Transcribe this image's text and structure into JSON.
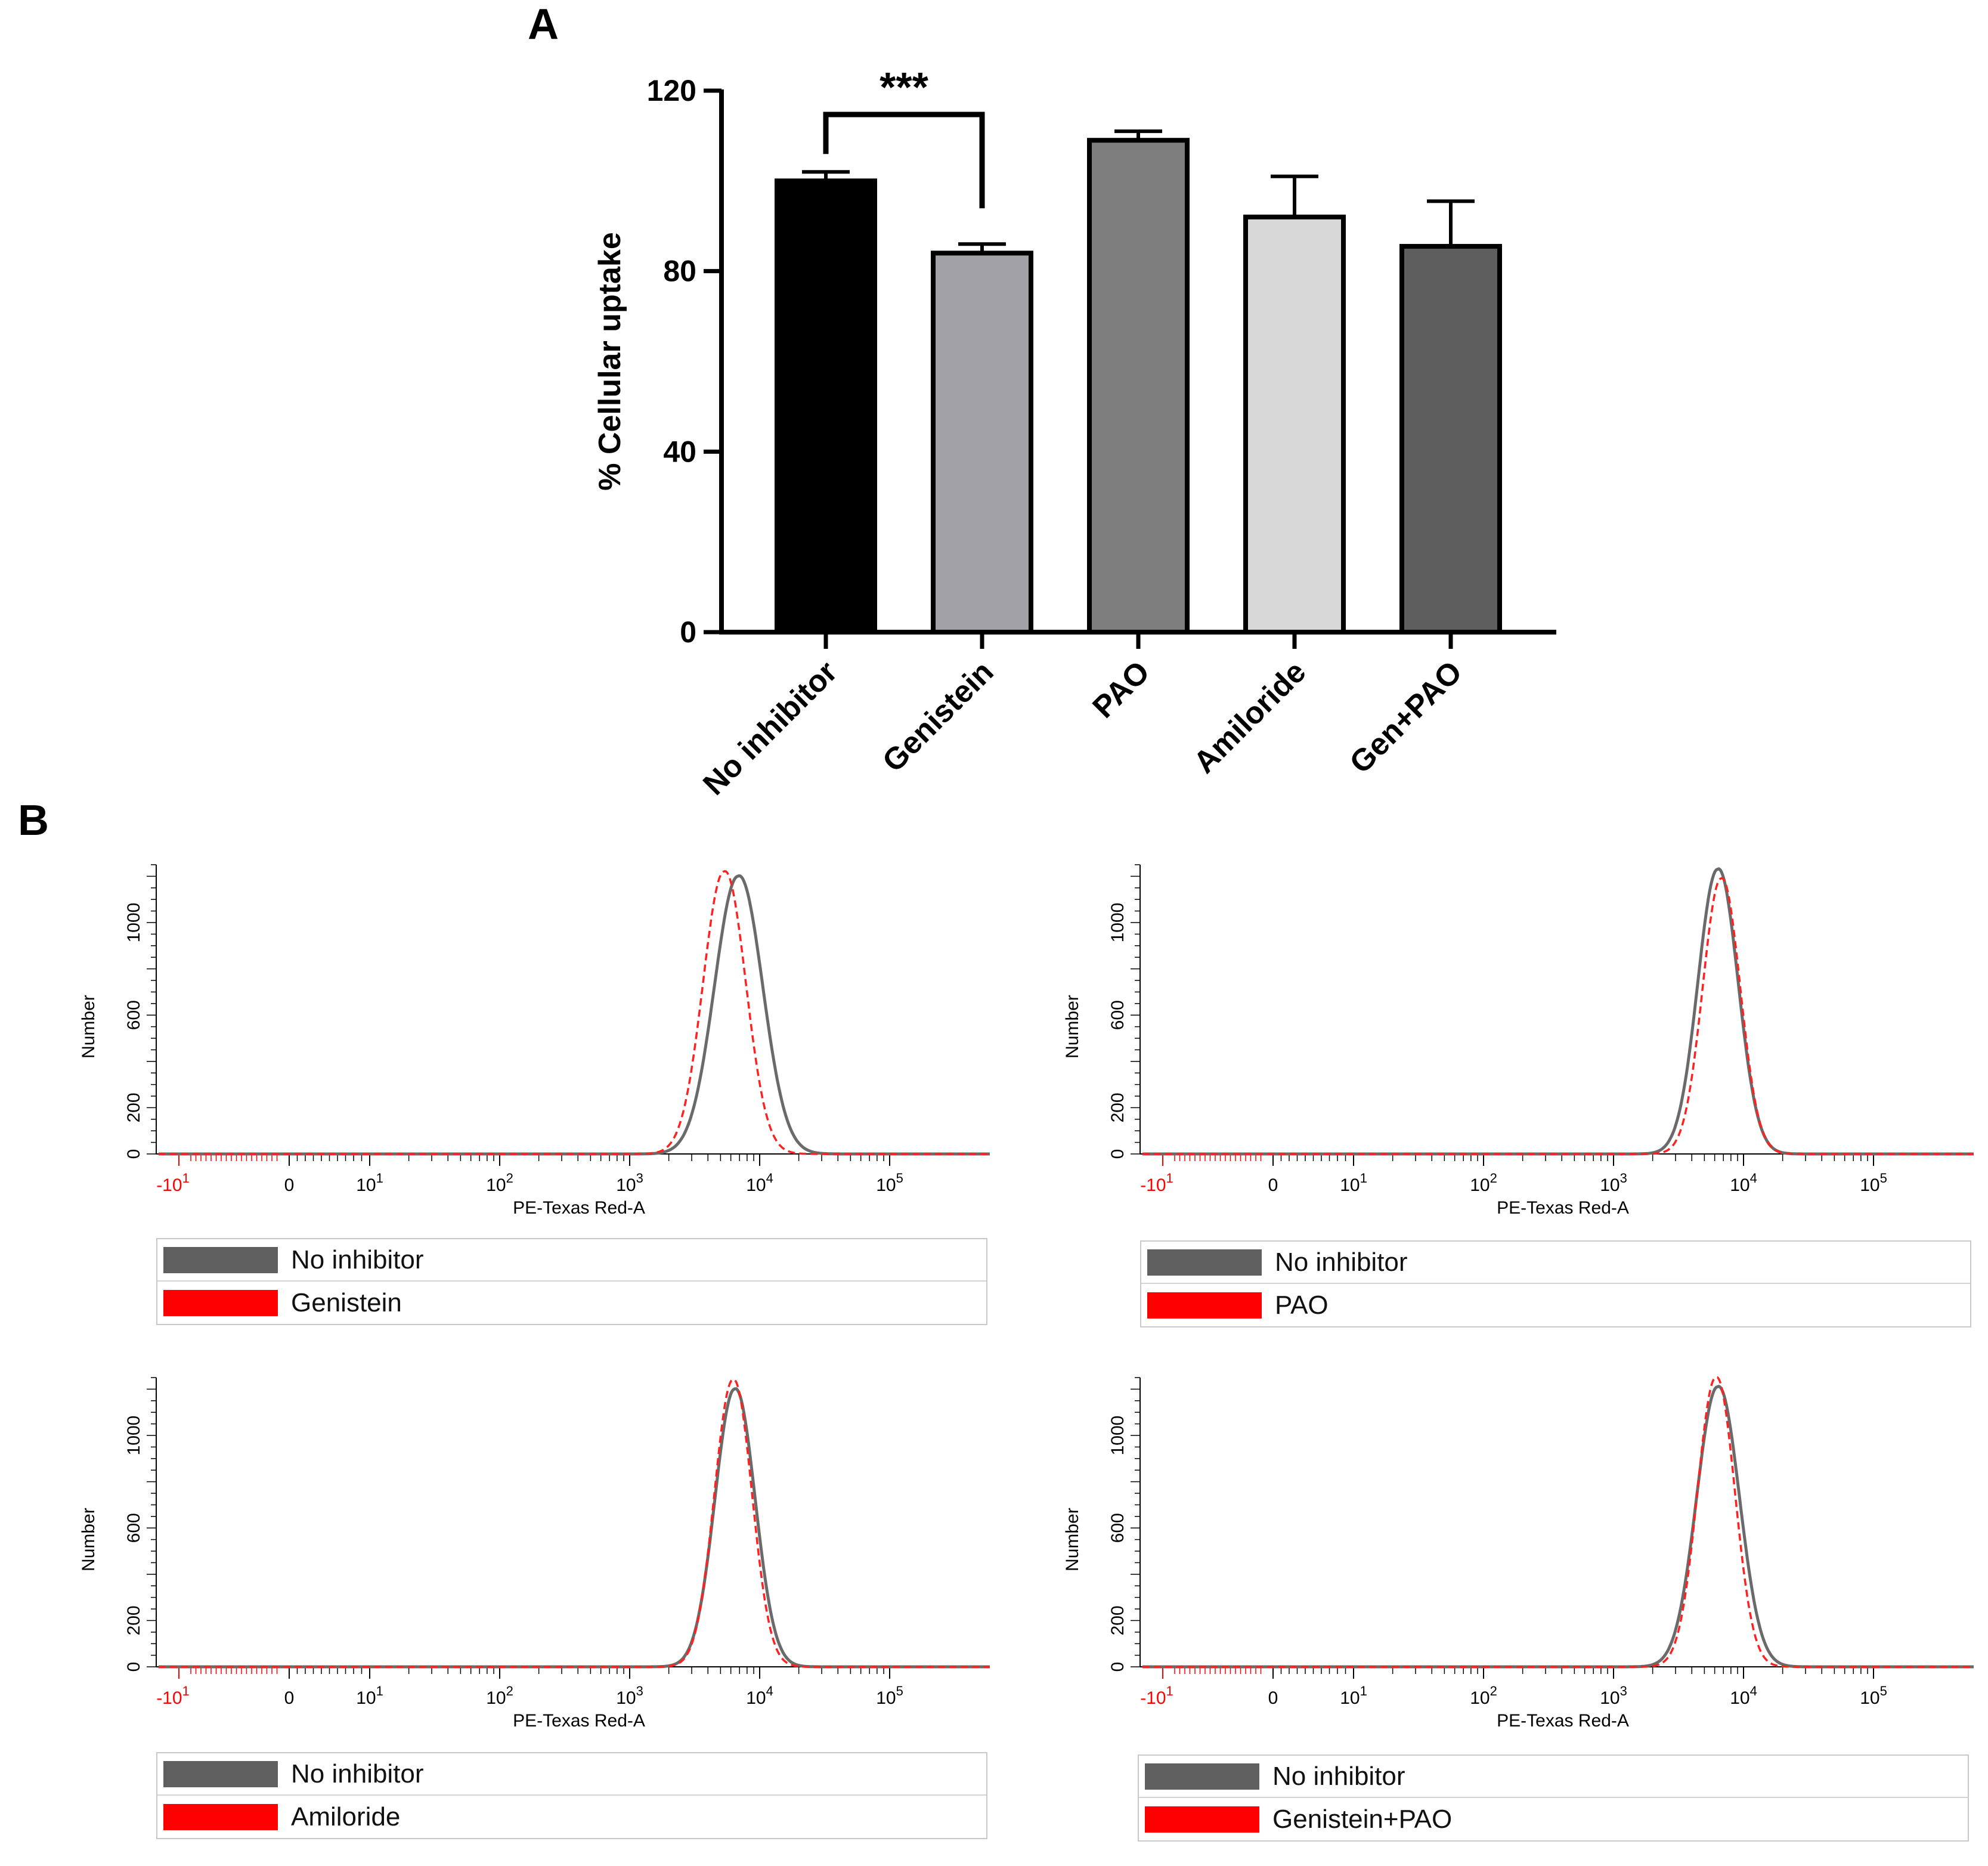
{
  "colors": {
    "bar_fills": [
      "#000000",
      "#a2a1a6",
      "#7d7d7d",
      "#d8d8d8",
      "#5e5e5e"
    ],
    "gray_curve": "#6a6a6a",
    "red_curve": "#ff2020",
    "legend_gray": "#5f5f5f",
    "legend_red": "#ff0000",
    "negative_tick": "#ff0000"
  },
  "chart_data": [
    {
      "panel": "A",
      "type": "bar",
      "title": "",
      "xlabel": "",
      "ylabel": "% Cellular uptake",
      "ylim": [
        0,
        120
      ],
      "yticks": [
        "0",
        "40",
        "80",
        "120"
      ],
      "categories": [
        "No inhibitor",
        "Genistein",
        "PAO",
        "Amiloride",
        "Gen+PAO"
      ],
      "values": [
        100,
        84,
        109,
        92,
        85.5
      ],
      "errors": [
        2,
        2,
        2,
        9,
        10
      ],
      "significance": {
        "from": "No inhibitor",
        "to": "Genistein",
        "label": "***"
      }
    },
    {
      "panel": "B",
      "type": "line",
      "title": "",
      "xlabel": "PE-Texas Red-A",
      "ylabel": "Number",
      "xscale": "biexponential",
      "ylim": [
        0,
        1250
      ],
      "yticks": [
        "0",
        "200",
        "600",
        "1000"
      ],
      "xticks": [
        {
          "base": "-10",
          "exp": "1",
          "value": -10
        },
        {
          "base": "0",
          "exp": "",
          "value": 0
        },
        {
          "base": "10",
          "exp": "1",
          "value": 10
        },
        {
          "base": "10",
          "exp": "2",
          "value": 100
        },
        {
          "base": "10",
          "exp": "3",
          "value": 1000
        },
        {
          "base": "10",
          "exp": "4",
          "value": 10000
        },
        {
          "base": "10",
          "exp": "5",
          "value": 100000
        }
      ],
      "plots": [
        {
          "series": [
            {
              "name": "No inhibitor",
              "peak_x": 6800,
              "peak_y": 1200,
              "spread_log": 0.18
            },
            {
              "name": "Genistein",
              "peak_x": 5300,
              "peak_y": 1220,
              "spread_log": 0.16
            }
          ]
        },
        {
          "series": [
            {
              "name": "No inhibitor",
              "peak_x": 6300,
              "peak_y": 1230,
              "spread_log": 0.15
            },
            {
              "name": "PAO",
              "peak_x": 6700,
              "peak_y": 1190,
              "spread_log": 0.14
            }
          ]
        },
        {
          "series": [
            {
              "name": "No inhibitor",
              "peak_x": 6400,
              "peak_y": 1200,
              "spread_log": 0.15
            },
            {
              "name": "Amiloride",
              "peak_x": 6200,
              "peak_y": 1240,
              "spread_log": 0.14
            }
          ]
        },
        {
          "series": [
            {
              "name": "No inhibitor",
              "peak_x": 6300,
              "peak_y": 1210,
              "spread_log": 0.16
            },
            {
              "name": "Genistein+PAO",
              "peak_x": 6100,
              "peak_y": 1250,
              "spread_log": 0.14
            }
          ]
        }
      ]
    }
  ],
  "panels": {
    "a": "A",
    "b": "B"
  },
  "legends": [
    {
      "gray": "No inhibitor",
      "red": "Genistein"
    },
    {
      "gray": "No inhibitor",
      "red": "PAO"
    },
    {
      "gray": "No inhibitor",
      "red": "Amiloride"
    },
    {
      "gray": "No inhibitor",
      "red": "Genistein+PAO"
    }
  ]
}
